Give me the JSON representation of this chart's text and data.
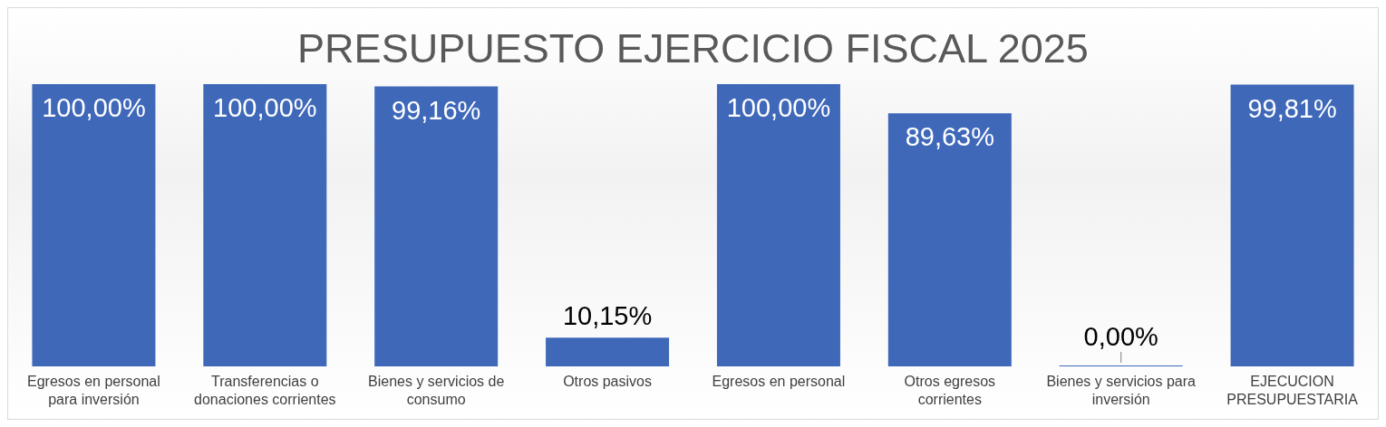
{
  "chart_data": {
    "type": "bar",
    "title": "PRESUPUESTO EJERCICIO FISCAL 2025",
    "categories": [
      "Egresos en personal para inversión",
      "Transferencias o donaciones corrientes",
      "Bienes y servicios de consumo",
      "Otros pasivos",
      "Egresos en personal",
      "Otros egresos corrientes",
      "Bienes y servicios para inversión",
      "EJECUCION PRESUPUESTARIA"
    ],
    "values": [
      100,
      100,
      99.16,
      10.15,
      100,
      89.63,
      0,
      99.81
    ],
    "value_labels": [
      "100,00%",
      "100,00%",
      "99,16%",
      "10,15%",
      "100,00%",
      "89,63%",
      "0,00%",
      "99,81%"
    ],
    "color": "#3f68b9",
    "grid": false,
    "legend": false
  }
}
